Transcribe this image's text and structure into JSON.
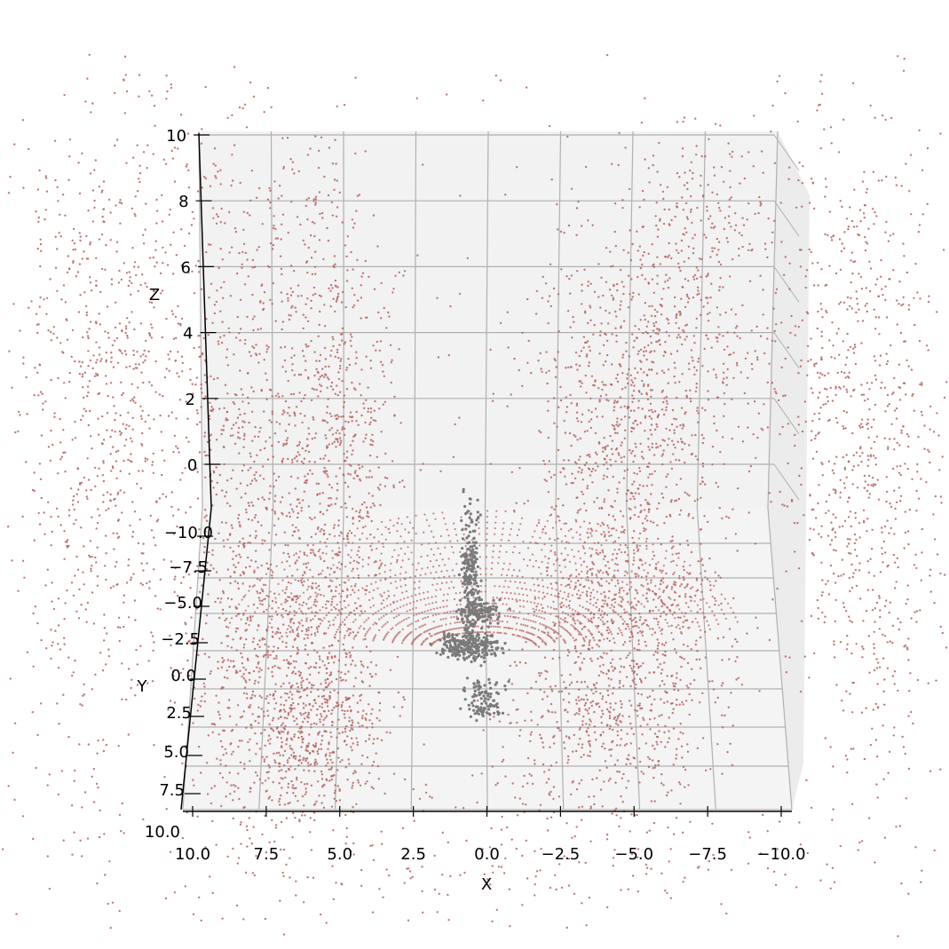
{
  "chart_data": {
    "type": "scatter",
    "projection": "3d",
    "title": "",
    "xlabel": "X",
    "ylabel": "Y",
    "zlabel": "Z",
    "xlim": [
      -10,
      10
    ],
    "ylim": [
      -10,
      10
    ],
    "zlim": [
      -2,
      10
    ],
    "x_ticks": [
      "10.0",
      "7.5",
      "5.0",
      "2.5",
      "0.0",
      "−2.5",
      "−5.0",
      "−7.5",
      "−10.0"
    ],
    "y_ticks": [
      "−10.0",
      "−7.5",
      "−5.0",
      "−2.5",
      "0.0",
      "2.5",
      "5.0",
      "7.5",
      "10.0"
    ],
    "z_ticks": [
      "10",
      "8",
      "6",
      "4",
      "2",
      "0"
    ],
    "grid": true,
    "colors": {
      "points": "#b5615f",
      "ego_vehicle": "#7a7a7a",
      "pane": "#f2f2f2",
      "grid": "#b0b0b0"
    },
    "series": [
      {
        "kind": "lidar_point_cloud",
        "color": "#b5615f"
      },
      {
        "kind": "ego_vehicle_points",
        "color": "#7a7a7a"
      }
    ]
  }
}
